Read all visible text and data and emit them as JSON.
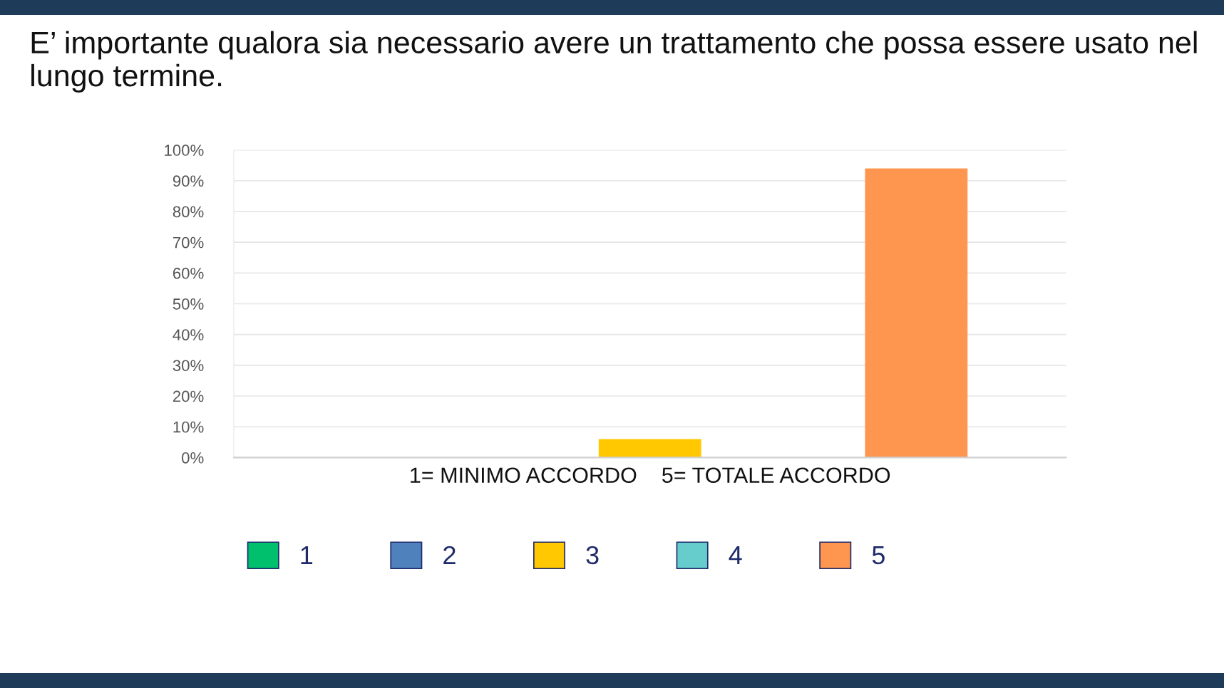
{
  "chart_data": {
    "type": "bar",
    "title": "E’ importante qualora sia necessario avere un trattamento che possa essere usato nel lungo termine.",
    "xlabel": "1= MINIMO ACCORDO    5= TOTALE ACCORDO",
    "categories": [
      null
    ],
    "series": [
      {
        "name": "1",
        "color": "#00c06e",
        "values": [
          0
        ]
      },
      {
        "name": "2",
        "color": "#4f81bd",
        "values": [
          0
        ]
      },
      {
        "name": "3",
        "color": "#ffc800",
        "values": [
          6
        ]
      },
      {
        "name": "4",
        "color": "#66cccc",
        "values": [
          0
        ]
      },
      {
        "name": "5",
        "color": "#ff9650",
        "values": [
          94
        ]
      }
    ],
    "ylim": [
      0,
      100
    ],
    "yticks": [
      {
        "value": 0,
        "label": "0%"
      },
      {
        "value": 10,
        "label": "10%"
      },
      {
        "value": 20,
        "label": "20%"
      },
      {
        "value": 30,
        "label": "30%"
      },
      {
        "value": 40,
        "label": "40%"
      },
      {
        "value": 50,
        "label": "50%"
      },
      {
        "value": 60,
        "label": "60%"
      },
      {
        "value": 70,
        "label": "70%"
      },
      {
        "value": 80,
        "label": "80%"
      },
      {
        "value": 90,
        "label": "90%"
      },
      {
        "value": 100,
        "label": "100%"
      }
    ],
    "grid": "y",
    "legend": "bottom"
  }
}
